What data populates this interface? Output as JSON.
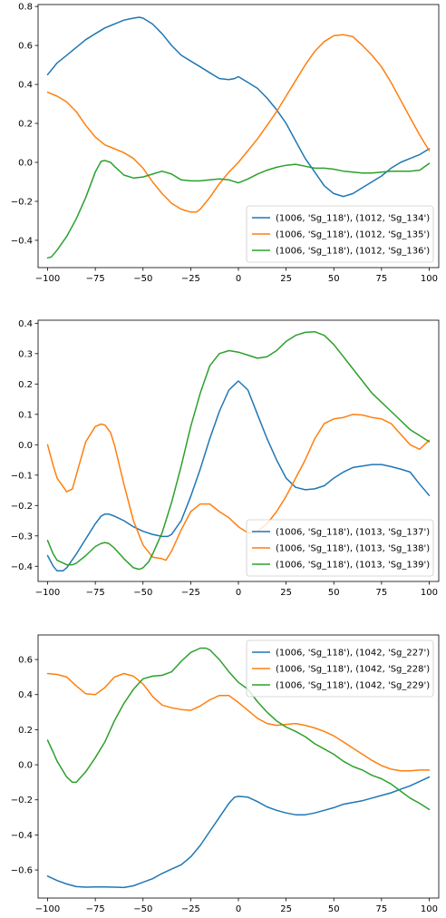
{
  "chart_data": [
    {
      "type": "line",
      "title": "",
      "xlabel": "",
      "ylabel": "",
      "xlim": [
        -105,
        105
      ],
      "ylim": [
        -0.54,
        0.81
      ],
      "xticks": [
        -100,
        -75,
        -50,
        -25,
        0,
        25,
        50,
        75,
        100
      ],
      "yticks": [
        -0.4,
        -0.2,
        0.0,
        0.2,
        0.4,
        0.6,
        0.8
      ],
      "ytick_labels": [
        "−0.4",
        "−0.2",
        "0.0",
        "0.2",
        "0.4",
        "0.6",
        "0.8"
      ],
      "xtick_labels": [
        "−100",
        "−75",
        "−50",
        "−25",
        "0",
        "25",
        "50",
        "75",
        "100"
      ],
      "legend_position": "lower-right",
      "grid": false,
      "series": [
        {
          "name": "(1006, 'Sg_118'), (1012, 'Sg_134')",
          "color": "#1f77b4",
          "x": [
            -100,
            -95,
            -90,
            -85,
            -80,
            -75,
            -70,
            -65,
            -60,
            -55,
            -52,
            -50,
            -45,
            -40,
            -35,
            -30,
            -25,
            -20,
            -15,
            -10,
            -5,
            -2,
            0,
            5,
            10,
            15,
            20,
            25,
            30,
            35,
            40,
            45,
            50,
            55,
            60,
            65,
            70,
            75,
            80,
            85,
            90,
            95,
            100
          ],
          "y": [
            0.45,
            0.51,
            0.55,
            0.59,
            0.63,
            0.66,
            0.69,
            0.71,
            0.73,
            0.74,
            0.745,
            0.74,
            0.71,
            0.66,
            0.6,
            0.55,
            0.52,
            0.49,
            0.46,
            0.43,
            0.425,
            0.43,
            0.44,
            0.41,
            0.38,
            0.33,
            0.27,
            0.2,
            0.11,
            0.02,
            -0.05,
            -0.12,
            -0.16,
            -0.175,
            -0.16,
            -0.13,
            -0.1,
            -0.07,
            -0.03,
            0.0,
            0.02,
            0.04,
            0.07
          ]
        },
        {
          "name": "(1006, 'Sg_118'), (1012, 'Sg_135')",
          "color": "#ff7f0e",
          "x": [
            -100,
            -95,
            -90,
            -85,
            -80,
            -75,
            -70,
            -65,
            -60,
            -55,
            -50,
            -45,
            -40,
            -35,
            -30,
            -25,
            -22,
            -20,
            -15,
            -10,
            -5,
            0,
            5,
            10,
            15,
            20,
            25,
            30,
            35,
            40,
            45,
            50,
            55,
            60,
            65,
            70,
            75,
            80,
            85,
            90,
            95,
            100
          ],
          "y": [
            0.36,
            0.34,
            0.31,
            0.26,
            0.19,
            0.13,
            0.09,
            0.07,
            0.05,
            0.02,
            -0.03,
            -0.1,
            -0.16,
            -0.21,
            -0.24,
            -0.255,
            -0.255,
            -0.24,
            -0.18,
            -0.11,
            -0.05,
            0.0,
            0.06,
            0.12,
            0.19,
            0.26,
            0.34,
            0.42,
            0.5,
            0.57,
            0.62,
            0.65,
            0.655,
            0.645,
            0.6,
            0.55,
            0.49,
            0.41,
            0.32,
            0.23,
            0.14,
            0.06
          ]
        },
        {
          "name": "(1006, 'Sg_118'), (1012, 'Sg_136')",
          "color": "#2ca02c",
          "x": [
            -100,
            -98,
            -95,
            -90,
            -85,
            -80,
            -75,
            -72,
            -70,
            -67,
            -65,
            -60,
            -55,
            -50,
            -45,
            -40,
            -35,
            -30,
            -25,
            -20,
            -15,
            -10,
            -5,
            0,
            5,
            10,
            15,
            20,
            25,
            30,
            35,
            40,
            45,
            50,
            55,
            60,
            65,
            70,
            75,
            80,
            85,
            90,
            95,
            100
          ],
          "y": [
            -0.49,
            -0.485,
            -0.45,
            -0.38,
            -0.29,
            -0.18,
            -0.05,
            0.005,
            0.01,
            0.0,
            -0.02,
            -0.065,
            -0.08,
            -0.075,
            -0.06,
            -0.045,
            -0.06,
            -0.09,
            -0.095,
            -0.095,
            -0.09,
            -0.085,
            -0.09,
            -0.105,
            -0.085,
            -0.06,
            -0.04,
            -0.025,
            -0.015,
            -0.01,
            -0.02,
            -0.03,
            -0.03,
            -0.035,
            -0.045,
            -0.05,
            -0.055,
            -0.055,
            -0.05,
            -0.045,
            -0.045,
            -0.045,
            -0.04,
            -0.005
          ]
        }
      ]
    },
    {
      "type": "line",
      "title": "",
      "xlabel": "",
      "ylabel": "",
      "xlim": [
        -105,
        105
      ],
      "ylim": [
        -0.45,
        0.41
      ],
      "xticks": [
        -100,
        -75,
        -50,
        -25,
        0,
        25,
        50,
        75,
        100
      ],
      "yticks": [
        -0.4,
        -0.3,
        -0.2,
        -0.1,
        0.0,
        0.1,
        0.2,
        0.3,
        0.4
      ],
      "ytick_labels": [
        "−0.4",
        "−0.3",
        "−0.2",
        "−0.1",
        "0.0",
        "0.1",
        "0.2",
        "0.3",
        "0.4"
      ],
      "xtick_labels": [
        "−100",
        "−75",
        "−50",
        "−25",
        "0",
        "25",
        "50",
        "75",
        "100"
      ],
      "legend_position": "lower-right",
      "grid": false,
      "series": [
        {
          "name": "(1006, 'Sg_118'), (1013, 'Sg_137')",
          "color": "#1f77b4",
          "x": [
            -100,
            -97,
            -95,
            -92,
            -90,
            -85,
            -80,
            -75,
            -72,
            -70,
            -68,
            -65,
            -60,
            -55,
            -50,
            -45,
            -40,
            -37,
            -35,
            -30,
            -25,
            -20,
            -15,
            -10,
            -5,
            0,
            5,
            10,
            15,
            20,
            25,
            30,
            35,
            40,
            45,
            50,
            55,
            60,
            65,
            70,
            75,
            80,
            85,
            90,
            95,
            100
          ],
          "y": [
            -0.365,
            -0.4,
            -0.415,
            -0.415,
            -0.405,
            -0.36,
            -0.31,
            -0.26,
            -0.235,
            -0.228,
            -0.228,
            -0.235,
            -0.25,
            -0.27,
            -0.285,
            -0.295,
            -0.302,
            -0.302,
            -0.295,
            -0.25,
            -0.17,
            -0.08,
            0.02,
            0.11,
            0.18,
            0.21,
            0.18,
            0.1,
            0.02,
            -0.05,
            -0.11,
            -0.14,
            -0.148,
            -0.145,
            -0.135,
            -0.11,
            -0.09,
            -0.075,
            -0.07,
            -0.065,
            -0.065,
            -0.072,
            -0.08,
            -0.09,
            -0.13,
            -0.167
          ]
        },
        {
          "name": "(1006, 'Sg_118'), (1013, 'Sg_138')",
          "color": "#ff7f0e",
          "x": [
            -100,
            -97,
            -95,
            -90,
            -87,
            -85,
            -80,
            -75,
            -72,
            -70,
            -67,
            -65,
            -60,
            -55,
            -50,
            -45,
            -40,
            -38,
            -35,
            -30,
            -25,
            -20,
            -15,
            -10,
            -5,
            0,
            5,
            10,
            15,
            20,
            25,
            30,
            35,
            40,
            45,
            50,
            55,
            60,
            65,
            70,
            75,
            80,
            85,
            90,
            95,
            100
          ],
          "y": [
            0.0,
            -0.07,
            -0.11,
            -0.155,
            -0.145,
            -0.1,
            0.01,
            0.06,
            0.068,
            0.065,
            0.04,
            0.0,
            -0.13,
            -0.25,
            -0.33,
            -0.37,
            -0.375,
            -0.38,
            -0.35,
            -0.28,
            -0.22,
            -0.195,
            -0.195,
            -0.22,
            -0.24,
            -0.27,
            -0.29,
            -0.285,
            -0.26,
            -0.22,
            -0.17,
            -0.11,
            -0.05,
            0.02,
            0.07,
            0.085,
            0.09,
            0.1,
            0.098,
            0.09,
            0.085,
            0.07,
            0.035,
            0.0,
            -0.015,
            0.015
          ]
        },
        {
          "name": "(1006, 'Sg_118'), (1013, 'Sg_139')",
          "color": "#2ca02c",
          "x": [
            -100,
            -97,
            -95,
            -90,
            -87,
            -85,
            -80,
            -75,
            -72,
            -70,
            -68,
            -65,
            -60,
            -55,
            -52,
            -50,
            -47,
            -45,
            -40,
            -35,
            -30,
            -25,
            -20,
            -15,
            -10,
            -5,
            0,
            5,
            10,
            15,
            20,
            25,
            30,
            35,
            40,
            45,
            50,
            55,
            60,
            65,
            70,
            75,
            80,
            85,
            90,
            95,
            100
          ],
          "y": [
            -0.315,
            -0.36,
            -0.38,
            -0.395,
            -0.395,
            -0.39,
            -0.365,
            -0.335,
            -0.325,
            -0.322,
            -0.325,
            -0.34,
            -0.375,
            -0.405,
            -0.41,
            -0.405,
            -0.385,
            -0.36,
            -0.29,
            -0.19,
            -0.07,
            0.06,
            0.17,
            0.26,
            0.3,
            0.31,
            0.305,
            0.295,
            0.285,
            0.29,
            0.31,
            0.34,
            0.36,
            0.37,
            0.372,
            0.36,
            0.33,
            0.29,
            0.25,
            0.21,
            0.17,
            0.14,
            0.11,
            0.08,
            0.05,
            0.03,
            0.01
          ]
        }
      ]
    },
    {
      "type": "line",
      "title": "",
      "xlabel": "",
      "ylabel": "",
      "xlim": [
        -105,
        105
      ],
      "ylim": [
        -0.76,
        0.74
      ],
      "xticks": [
        -100,
        -75,
        -50,
        -25,
        0,
        25,
        50,
        75,
        100
      ],
      "yticks": [
        -0.6,
        -0.4,
        -0.2,
        0.0,
        0.2,
        0.4,
        0.6
      ],
      "ytick_labels": [
        "−0.6",
        "−0.4",
        "−0.2",
        "0.0",
        "0.2",
        "0.4",
        "0.6"
      ],
      "xtick_labels": [
        "−100",
        "−75",
        "−50",
        "−25",
        "0",
        "25",
        "50",
        "75",
        "100"
      ],
      "legend_position": "upper-right",
      "grid": false,
      "series": [
        {
          "name": "(1006, 'Sg_118'), (1042, 'Sg_227')",
          "color": "#1f77b4",
          "x": [
            -100,
            -95,
            -90,
            -85,
            -80,
            -75,
            -70,
            -65,
            -60,
            -55,
            -50,
            -45,
            -40,
            -35,
            -30,
            -25,
            -20,
            -15,
            -10,
            -5,
            -2,
            0,
            5,
            10,
            15,
            20,
            25,
            30,
            35,
            40,
            45,
            50,
            55,
            60,
            65,
            70,
            75,
            80,
            85,
            90,
            95,
            100
          ],
          "y": [
            -0.635,
            -0.66,
            -0.68,
            -0.695,
            -0.698,
            -0.697,
            -0.697,
            -0.698,
            -0.7,
            -0.69,
            -0.67,
            -0.65,
            -0.62,
            -0.595,
            -0.57,
            -0.525,
            -0.46,
            -0.38,
            -0.3,
            -0.22,
            -0.185,
            -0.18,
            -0.185,
            -0.21,
            -0.24,
            -0.26,
            -0.275,
            -0.285,
            -0.285,
            -0.275,
            -0.26,
            -0.245,
            -0.225,
            -0.215,
            -0.205,
            -0.19,
            -0.175,
            -0.16,
            -0.14,
            -0.12,
            -0.095,
            -0.07
          ]
        },
        {
          "name": "(1006, 'Sg_118'), (1042, 'Sg_228')",
          "color": "#ff7f0e",
          "x": [
            -100,
            -95,
            -90,
            -85,
            -80,
            -75,
            -70,
            -65,
            -60,
            -55,
            -50,
            -45,
            -40,
            -35,
            -30,
            -25,
            -20,
            -15,
            -10,
            -5,
            0,
            5,
            10,
            15,
            20,
            25,
            30,
            35,
            40,
            45,
            50,
            55,
            60,
            65,
            70,
            75,
            80,
            85,
            90,
            95,
            100
          ],
          "y": [
            0.52,
            0.515,
            0.5,
            0.45,
            0.405,
            0.4,
            0.44,
            0.5,
            0.52,
            0.505,
            0.46,
            0.39,
            0.34,
            0.325,
            0.315,
            0.31,
            0.335,
            0.37,
            0.395,
            0.395,
            0.355,
            0.31,
            0.265,
            0.235,
            0.225,
            0.23,
            0.235,
            0.225,
            0.21,
            0.19,
            0.165,
            0.13,
            0.095,
            0.06,
            0.025,
            -0.005,
            -0.025,
            -0.035,
            -0.035,
            -0.03,
            -0.03
          ]
        },
        {
          "name": "(1006, 'Sg_118'), (1042, 'Sg_229')",
          "color": "#2ca02c",
          "x": [
            -100,
            -97,
            -95,
            -90,
            -87,
            -85,
            -80,
            -75,
            -70,
            -65,
            -60,
            -55,
            -50,
            -45,
            -40,
            -35,
            -30,
            -25,
            -20,
            -17,
            -15,
            -10,
            -5,
            0,
            5,
            10,
            15,
            20,
            25,
            30,
            35,
            40,
            45,
            50,
            55,
            60,
            65,
            70,
            75,
            80,
            85,
            90,
            95,
            100
          ],
          "y": [
            0.14,
            0.07,
            0.02,
            -0.07,
            -0.1,
            -0.1,
            -0.04,
            0.04,
            0.13,
            0.25,
            0.35,
            0.43,
            0.49,
            0.505,
            0.51,
            0.53,
            0.59,
            0.64,
            0.665,
            0.665,
            0.655,
            0.6,
            0.53,
            0.47,
            0.43,
            0.36,
            0.3,
            0.25,
            0.215,
            0.19,
            0.16,
            0.12,
            0.09,
            0.06,
            0.02,
            -0.01,
            -0.03,
            -0.06,
            -0.08,
            -0.11,
            -0.15,
            -0.19,
            -0.22,
            -0.255
          ]
        }
      ]
    }
  ]
}
